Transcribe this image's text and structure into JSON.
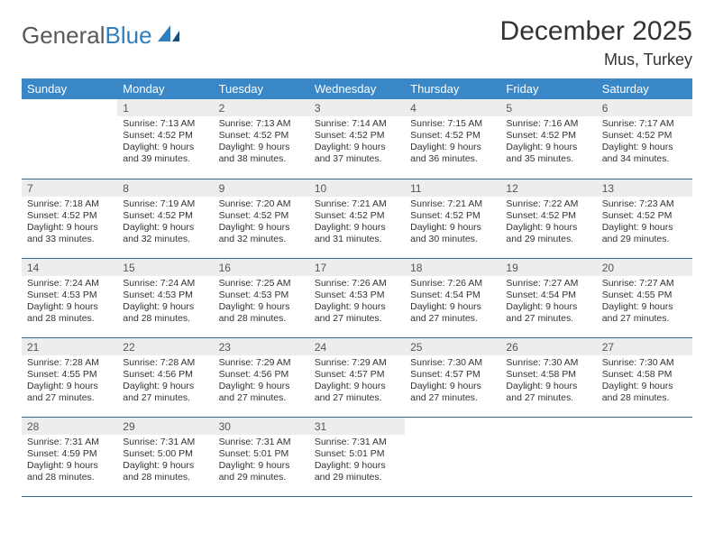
{
  "logo": {
    "part1": "General",
    "part2": "Blue"
  },
  "title": "December 2025",
  "location": "Mus, Turkey",
  "colors": {
    "header_bg": "#3a87c7",
    "header_text": "#ffffff",
    "daynum_bg": "#eceded",
    "row_border": "#2f6fa0",
    "text": "#333333",
    "logo_gray": "#5a5a5a",
    "logo_blue": "#2f7fbf"
  },
  "weekdays": [
    "Sunday",
    "Monday",
    "Tuesday",
    "Wednesday",
    "Thursday",
    "Friday",
    "Saturday"
  ],
  "weeks": [
    [
      {
        "day": "",
        "sunrise": "",
        "sunset": "",
        "daylight": ""
      },
      {
        "day": "1",
        "sunrise": "Sunrise: 7:13 AM",
        "sunset": "Sunset: 4:52 PM",
        "daylight": "Daylight: 9 hours and 39 minutes."
      },
      {
        "day": "2",
        "sunrise": "Sunrise: 7:13 AM",
        "sunset": "Sunset: 4:52 PM",
        "daylight": "Daylight: 9 hours and 38 minutes."
      },
      {
        "day": "3",
        "sunrise": "Sunrise: 7:14 AM",
        "sunset": "Sunset: 4:52 PM",
        "daylight": "Daylight: 9 hours and 37 minutes."
      },
      {
        "day": "4",
        "sunrise": "Sunrise: 7:15 AM",
        "sunset": "Sunset: 4:52 PM",
        "daylight": "Daylight: 9 hours and 36 minutes."
      },
      {
        "day": "5",
        "sunrise": "Sunrise: 7:16 AM",
        "sunset": "Sunset: 4:52 PM",
        "daylight": "Daylight: 9 hours and 35 minutes."
      },
      {
        "day": "6",
        "sunrise": "Sunrise: 7:17 AM",
        "sunset": "Sunset: 4:52 PM",
        "daylight": "Daylight: 9 hours and 34 minutes."
      }
    ],
    [
      {
        "day": "7",
        "sunrise": "Sunrise: 7:18 AM",
        "sunset": "Sunset: 4:52 PM",
        "daylight": "Daylight: 9 hours and 33 minutes."
      },
      {
        "day": "8",
        "sunrise": "Sunrise: 7:19 AM",
        "sunset": "Sunset: 4:52 PM",
        "daylight": "Daylight: 9 hours and 32 minutes."
      },
      {
        "day": "9",
        "sunrise": "Sunrise: 7:20 AM",
        "sunset": "Sunset: 4:52 PM",
        "daylight": "Daylight: 9 hours and 32 minutes."
      },
      {
        "day": "10",
        "sunrise": "Sunrise: 7:21 AM",
        "sunset": "Sunset: 4:52 PM",
        "daylight": "Daylight: 9 hours and 31 minutes."
      },
      {
        "day": "11",
        "sunrise": "Sunrise: 7:21 AM",
        "sunset": "Sunset: 4:52 PM",
        "daylight": "Daylight: 9 hours and 30 minutes."
      },
      {
        "day": "12",
        "sunrise": "Sunrise: 7:22 AM",
        "sunset": "Sunset: 4:52 PM",
        "daylight": "Daylight: 9 hours and 29 minutes."
      },
      {
        "day": "13",
        "sunrise": "Sunrise: 7:23 AM",
        "sunset": "Sunset: 4:52 PM",
        "daylight": "Daylight: 9 hours and 29 minutes."
      }
    ],
    [
      {
        "day": "14",
        "sunrise": "Sunrise: 7:24 AM",
        "sunset": "Sunset: 4:53 PM",
        "daylight": "Daylight: 9 hours and 28 minutes."
      },
      {
        "day": "15",
        "sunrise": "Sunrise: 7:24 AM",
        "sunset": "Sunset: 4:53 PM",
        "daylight": "Daylight: 9 hours and 28 minutes."
      },
      {
        "day": "16",
        "sunrise": "Sunrise: 7:25 AM",
        "sunset": "Sunset: 4:53 PM",
        "daylight": "Daylight: 9 hours and 28 minutes."
      },
      {
        "day": "17",
        "sunrise": "Sunrise: 7:26 AM",
        "sunset": "Sunset: 4:53 PM",
        "daylight": "Daylight: 9 hours and 27 minutes."
      },
      {
        "day": "18",
        "sunrise": "Sunrise: 7:26 AM",
        "sunset": "Sunset: 4:54 PM",
        "daylight": "Daylight: 9 hours and 27 minutes."
      },
      {
        "day": "19",
        "sunrise": "Sunrise: 7:27 AM",
        "sunset": "Sunset: 4:54 PM",
        "daylight": "Daylight: 9 hours and 27 minutes."
      },
      {
        "day": "20",
        "sunrise": "Sunrise: 7:27 AM",
        "sunset": "Sunset: 4:55 PM",
        "daylight": "Daylight: 9 hours and 27 minutes."
      }
    ],
    [
      {
        "day": "21",
        "sunrise": "Sunrise: 7:28 AM",
        "sunset": "Sunset: 4:55 PM",
        "daylight": "Daylight: 9 hours and 27 minutes."
      },
      {
        "day": "22",
        "sunrise": "Sunrise: 7:28 AM",
        "sunset": "Sunset: 4:56 PM",
        "daylight": "Daylight: 9 hours and 27 minutes."
      },
      {
        "day": "23",
        "sunrise": "Sunrise: 7:29 AM",
        "sunset": "Sunset: 4:56 PM",
        "daylight": "Daylight: 9 hours and 27 minutes."
      },
      {
        "day": "24",
        "sunrise": "Sunrise: 7:29 AM",
        "sunset": "Sunset: 4:57 PM",
        "daylight": "Daylight: 9 hours and 27 minutes."
      },
      {
        "day": "25",
        "sunrise": "Sunrise: 7:30 AM",
        "sunset": "Sunset: 4:57 PM",
        "daylight": "Daylight: 9 hours and 27 minutes."
      },
      {
        "day": "26",
        "sunrise": "Sunrise: 7:30 AM",
        "sunset": "Sunset: 4:58 PM",
        "daylight": "Daylight: 9 hours and 27 minutes."
      },
      {
        "day": "27",
        "sunrise": "Sunrise: 7:30 AM",
        "sunset": "Sunset: 4:58 PM",
        "daylight": "Daylight: 9 hours and 28 minutes."
      }
    ],
    [
      {
        "day": "28",
        "sunrise": "Sunrise: 7:31 AM",
        "sunset": "Sunset: 4:59 PM",
        "daylight": "Daylight: 9 hours and 28 minutes."
      },
      {
        "day": "29",
        "sunrise": "Sunrise: 7:31 AM",
        "sunset": "Sunset: 5:00 PM",
        "daylight": "Daylight: 9 hours and 28 minutes."
      },
      {
        "day": "30",
        "sunrise": "Sunrise: 7:31 AM",
        "sunset": "Sunset: 5:01 PM",
        "daylight": "Daylight: 9 hours and 29 minutes."
      },
      {
        "day": "31",
        "sunrise": "Sunrise: 7:31 AM",
        "sunset": "Sunset: 5:01 PM",
        "daylight": "Daylight: 9 hours and 29 minutes."
      },
      {
        "day": "",
        "sunrise": "",
        "sunset": "",
        "daylight": ""
      },
      {
        "day": "",
        "sunrise": "",
        "sunset": "",
        "daylight": ""
      },
      {
        "day": "",
        "sunrise": "",
        "sunset": "",
        "daylight": ""
      }
    ]
  ]
}
